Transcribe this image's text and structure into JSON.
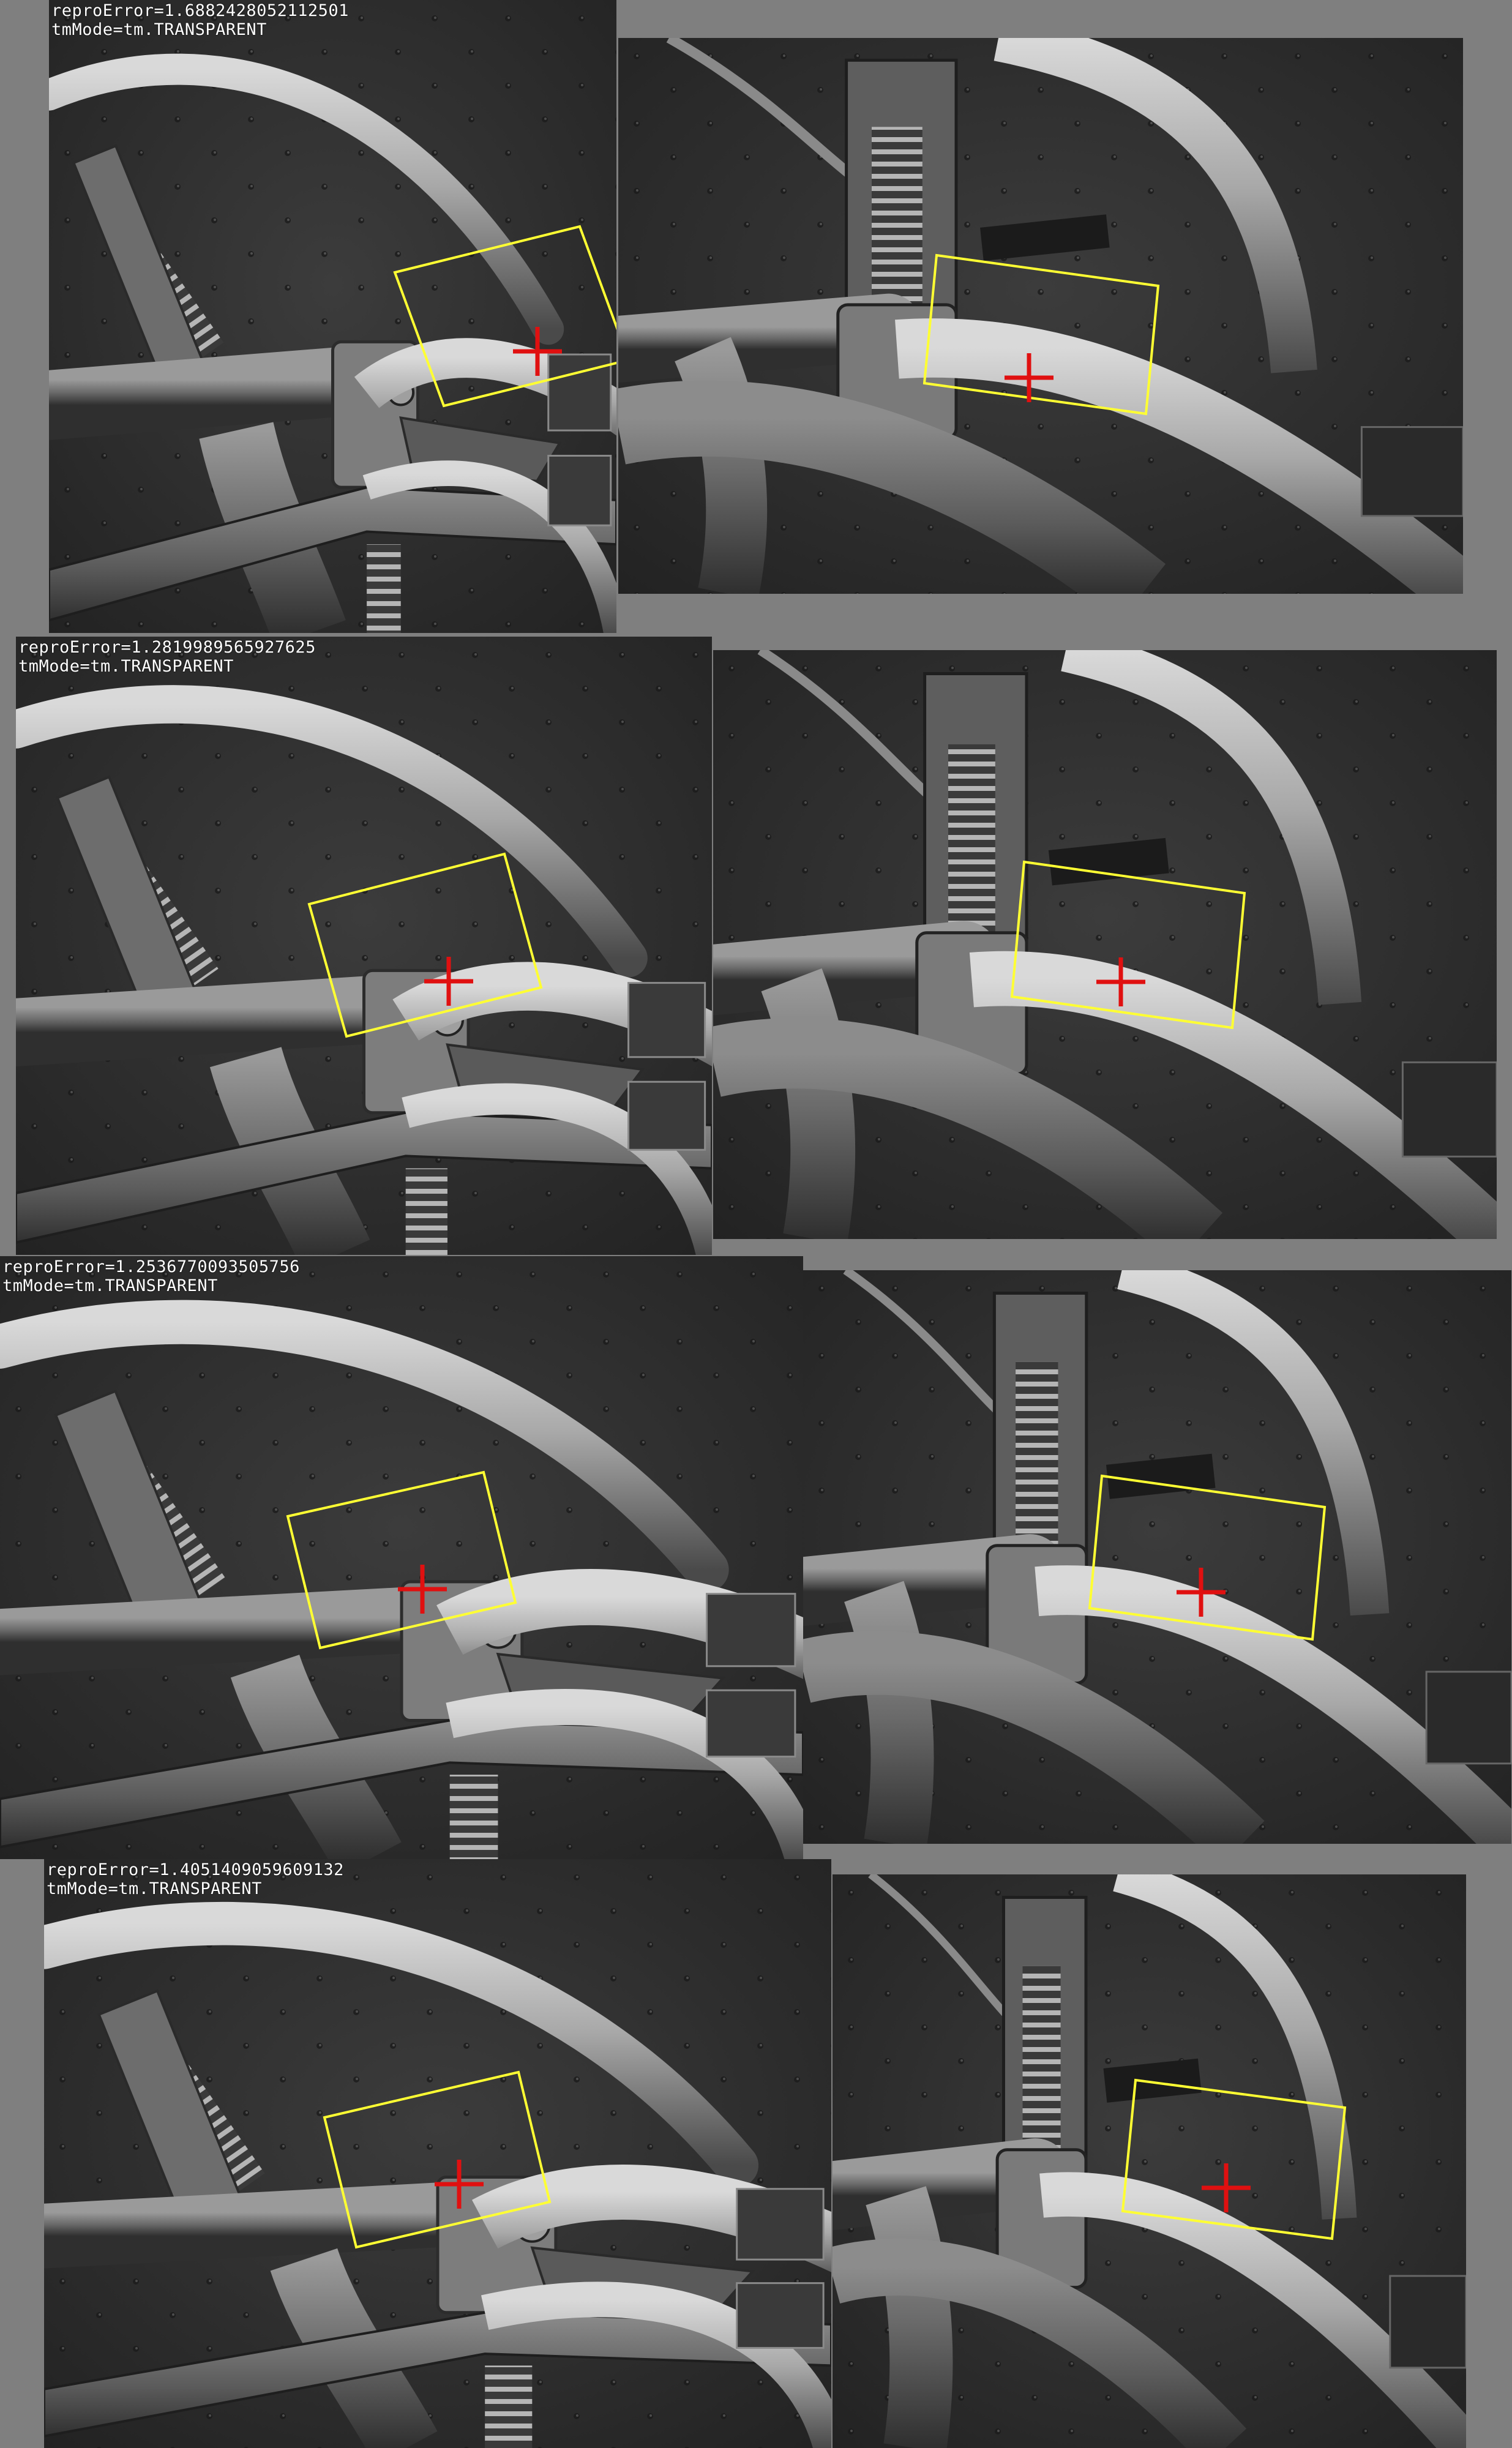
{
  "colors": {
    "background": "#7f7f7f",
    "roi_box": "#ffff33",
    "marker": "#e01010",
    "label_text": "#ffffff"
  },
  "rows": [
    {
      "annotation": {
        "repro_error": "reproError=1.6882428052112501",
        "tm_mode": "tmMode=tm.TRANSPARENT"
      },
      "left_view": {
        "marker_icon": "red-cross-marker-icon"
      },
      "right_view": {
        "marker_icon": "red-cross-marker-icon"
      }
    },
    {
      "annotation": {
        "repro_error": "reproError=1.2819989565927625",
        "tm_mode": "tmMode=tm.TRANSPARENT"
      },
      "left_view": {
        "marker_icon": "red-cross-marker-icon"
      },
      "right_view": {
        "marker_icon": "red-cross-marker-icon"
      }
    },
    {
      "annotation": {
        "repro_error": "reproError=1.2536770093505756",
        "tm_mode": "tmMode=tm.TRANSPARENT"
      },
      "left_view": {
        "marker_icon": "red-cross-marker-icon"
      },
      "right_view": {
        "marker_icon": "red-cross-marker-icon"
      }
    },
    {
      "annotation": {
        "repro_error": "reproError=1.4051409059609132",
        "tm_mode": "tmMode=tm.TRANSPARENT"
      },
      "left_view": {
        "marker_icon": "red-cross-marker-icon"
      },
      "right_view": {
        "marker_icon": "red-cross-marker-icon"
      }
    }
  ]
}
